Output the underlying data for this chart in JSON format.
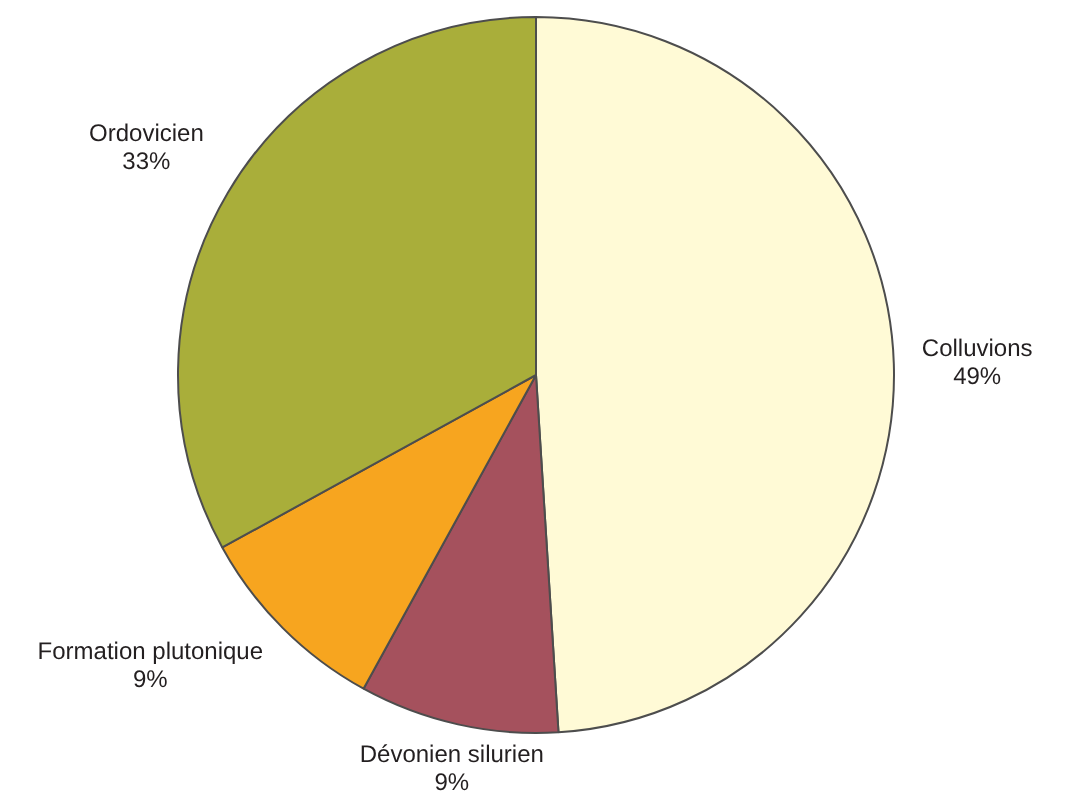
{
  "chart_data": {
    "type": "pie",
    "categories": [
      "Colluvions",
      "Dévonien silurien",
      "Formation plutonique",
      "Ordovicien"
    ],
    "values": [
      49,
      9,
      9,
      33
    ],
    "colors": [
      "#fffad6",
      "#a5515d",
      "#f7a51f",
      "#a9ae3a"
    ],
    "value_labels": [
      "49%",
      "9%",
      "9%",
      "33%"
    ],
    "legend": false
  }
}
